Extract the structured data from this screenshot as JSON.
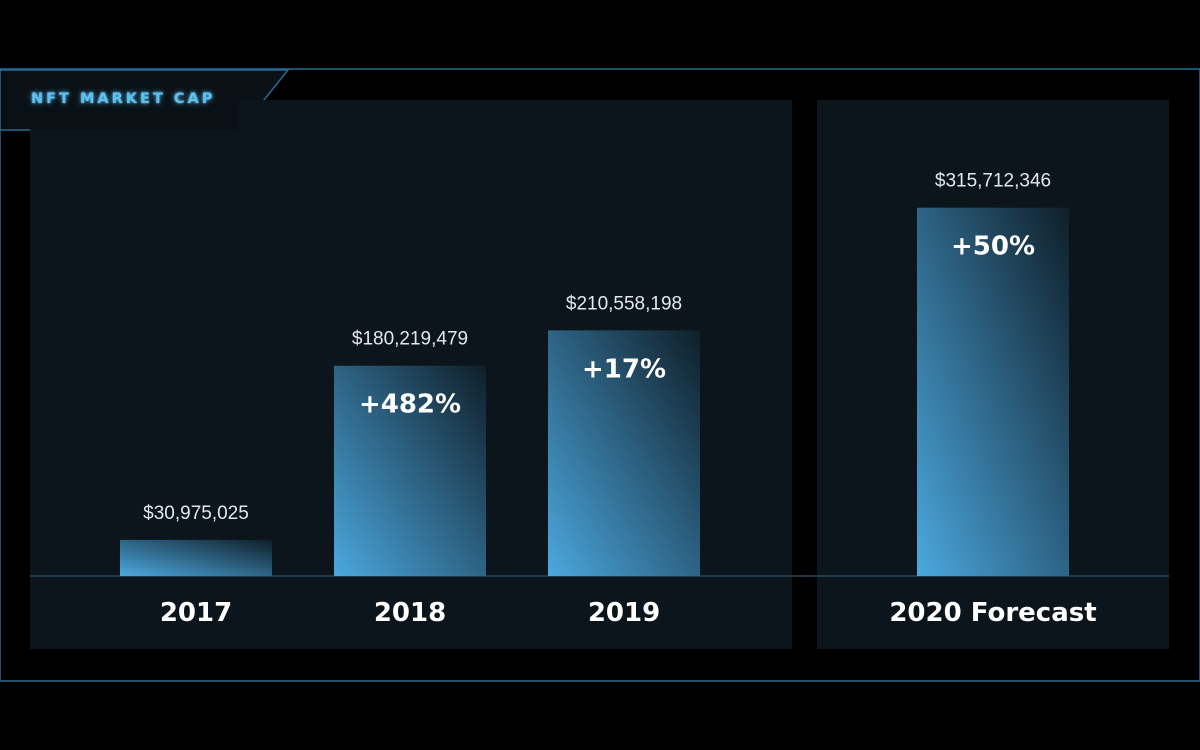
{
  "title": "NFT MARKET CAP",
  "colors": {
    "background": "#000000",
    "panel": "#0b151b",
    "frame_line": "#2a6a90",
    "title_glow": "#5fc0ee",
    "bar_bright": "#4ba8de",
    "bar_dark": "#0e1d26",
    "baseline": "#2a4656"
  },
  "chart_data": {
    "type": "bar",
    "title": "NFT MARKET CAP",
    "categories": [
      "2017",
      "2018",
      "2019",
      "2020 Forecast"
    ],
    "values": [
      30975025,
      180219479,
      210558198,
      315712346
    ],
    "value_labels": [
      "$30,975,025",
      "$180,219,479",
      "$210,558,198",
      "$315,712,346"
    ],
    "growth_labels": [
      "",
      "+482%",
      "+17%",
      "+50%"
    ],
    "forecast_index": 3,
    "ylim": [
      0,
      360000000
    ],
    "grid": false,
    "legend": "none"
  }
}
